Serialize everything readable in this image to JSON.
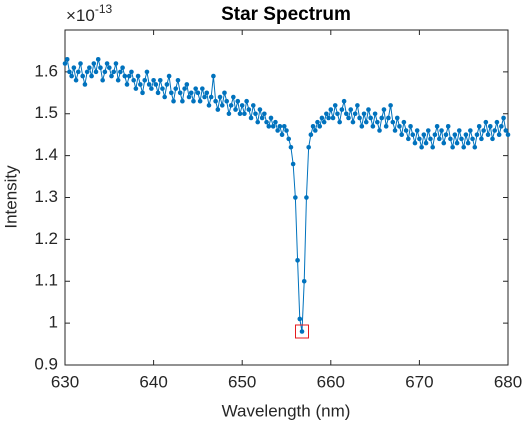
{
  "chart_data": {
    "type": "line",
    "title": "Star Spectrum",
    "x_label": "Wavelength (nm)",
    "y_label": "Intensity",
    "y_multiplier": "×10",
    "y_exponent": "-13",
    "x": [
      630,
      630.25,
      630.5,
      630.75,
      631,
      631.25,
      631.5,
      631.75,
      632,
      632.25,
      632.5,
      632.75,
      633,
      633.25,
      633.5,
      633.75,
      634,
      634.25,
      634.5,
      634.75,
      635,
      635.25,
      635.5,
      635.75,
      636,
      636.25,
      636.5,
      636.75,
      637,
      637.25,
      637.5,
      637.75,
      638,
      638.25,
      638.5,
      638.75,
      639,
      639.25,
      639.5,
      639.75,
      640,
      640.25,
      640.5,
      640.75,
      641,
      641.25,
      641.5,
      641.75,
      642,
      642.25,
      642.5,
      642.75,
      643,
      643.25,
      643.5,
      643.75,
      644,
      644.25,
      644.5,
      644.75,
      645,
      645.25,
      645.5,
      645.75,
      646,
      646.25,
      646.5,
      646.75,
      647,
      647.25,
      647.5,
      647.75,
      648,
      648.25,
      648.5,
      648.75,
      649,
      649.25,
      649.5,
      649.75,
      650,
      650.25,
      650.5,
      650.75,
      651,
      651.25,
      651.5,
      651.75,
      652,
      652.25,
      652.5,
      652.75,
      653,
      653.25,
      653.5,
      653.75,
      654,
      654.25,
      654.5,
      654.75,
      655,
      655.25,
      655.5,
      655.75,
      656,
      656.25,
      656.5,
      656.75,
      657,
      657.25,
      657.5,
      657.75,
      658,
      658.25,
      658.5,
      658.75,
      659,
      659.25,
      659.5,
      659.75,
      660,
      660.25,
      660.5,
      660.75,
      661,
      661.25,
      661.5,
      661.75,
      662,
      662.25,
      662.5,
      662.75,
      663,
      663.25,
      663.5,
      663.75,
      664,
      664.25,
      664.5,
      664.75,
      665,
      665.25,
      665.5,
      665.75,
      666,
      666.25,
      666.5,
      666.75,
      667,
      667.25,
      667.5,
      667.75,
      668,
      668.25,
      668.5,
      668.75,
      669,
      669.25,
      669.5,
      669.75,
      670,
      670.25,
      670.5,
      670.75,
      671,
      671.25,
      671.5,
      671.75,
      672,
      672.25,
      672.5,
      672.75,
      673,
      673.25,
      673.5,
      673.75,
      674,
      674.25,
      674.5,
      674.75,
      675,
      675.25,
      675.5,
      675.75,
      676,
      676.25,
      676.5,
      676.75,
      677,
      677.25,
      677.5,
      677.75,
      678,
      678.25,
      678.5,
      678.75,
      679,
      679.25,
      679.5,
      679.75,
      680
    ],
    "series": [
      {
        "name": "Intensity",
        "color": "#0072bd",
        "values": [
          1.62,
          1.63,
          1.6,
          1.59,
          1.61,
          1.58,
          1.6,
          1.62,
          1.59,
          1.57,
          1.6,
          1.61,
          1.59,
          1.62,
          1.6,
          1.63,
          1.61,
          1.58,
          1.6,
          1.62,
          1.61,
          1.59,
          1.6,
          1.62,
          1.58,
          1.6,
          1.61,
          1.59,
          1.57,
          1.59,
          1.6,
          1.58,
          1.56,
          1.59,
          1.57,
          1.55,
          1.58,
          1.6,
          1.57,
          1.56,
          1.58,
          1.57,
          1.55,
          1.58,
          1.56,
          1.54,
          1.57,
          1.59,
          1.55,
          1.53,
          1.56,
          1.58,
          1.55,
          1.53,
          1.56,
          1.57,
          1.54,
          1.55,
          1.53,
          1.56,
          1.55,
          1.53,
          1.56,
          1.54,
          1.55,
          1.52,
          1.54,
          1.59,
          1.53,
          1.51,
          1.54,
          1.52,
          1.55,
          1.53,
          1.5,
          1.52,
          1.54,
          1.51,
          1.53,
          1.5,
          1.52,
          1.5,
          1.53,
          1.51,
          1.49,
          1.52,
          1.5,
          1.48,
          1.51,
          1.49,
          1.5,
          1.48,
          1.47,
          1.49,
          1.47,
          1.48,
          1.46,
          1.47,
          1.45,
          1.47,
          1.46,
          1.44,
          1.42,
          1.38,
          1.3,
          1.15,
          1.01,
          0.98,
          1.1,
          1.3,
          1.42,
          1.45,
          1.47,
          1.46,
          1.48,
          1.47,
          1.49,
          1.48,
          1.5,
          1.49,
          1.51,
          1.49,
          1.52,
          1.5,
          1.48,
          1.51,
          1.53,
          1.5,
          1.49,
          1.51,
          1.48,
          1.5,
          1.52,
          1.49,
          1.47,
          1.5,
          1.48,
          1.51,
          1.49,
          1.47,
          1.5,
          1.48,
          1.46,
          1.49,
          1.51,
          1.47,
          1.49,
          1.52,
          1.48,
          1.46,
          1.49,
          1.47,
          1.45,
          1.48,
          1.46,
          1.44,
          1.47,
          1.45,
          1.43,
          1.46,
          1.44,
          1.42,
          1.45,
          1.43,
          1.46,
          1.44,
          1.42,
          1.45,
          1.47,
          1.44,
          1.46,
          1.43,
          1.45,
          1.47,
          1.44,
          1.42,
          1.45,
          1.43,
          1.46,
          1.44,
          1.42,
          1.45,
          1.43,
          1.46,
          1.44,
          1.42,
          1.45,
          1.47,
          1.44,
          1.46,
          1.48,
          1.45,
          1.47,
          1.44,
          1.46,
          1.48,
          1.45,
          1.47,
          1.49,
          1.46,
          1.45
        ]
      }
    ],
    "highlight_index": 107,
    "highlight_color": "#e41a1c",
    "xlim": [
      630,
      680
    ],
    "xticks": [
      630,
      640,
      650,
      660,
      670,
      680
    ],
    "ylim": [
      0.9,
      1.7
    ],
    "yticks": [
      0.9,
      1,
      1.1,
      1.2,
      1.3,
      1.4,
      1.5,
      1.6
    ]
  }
}
